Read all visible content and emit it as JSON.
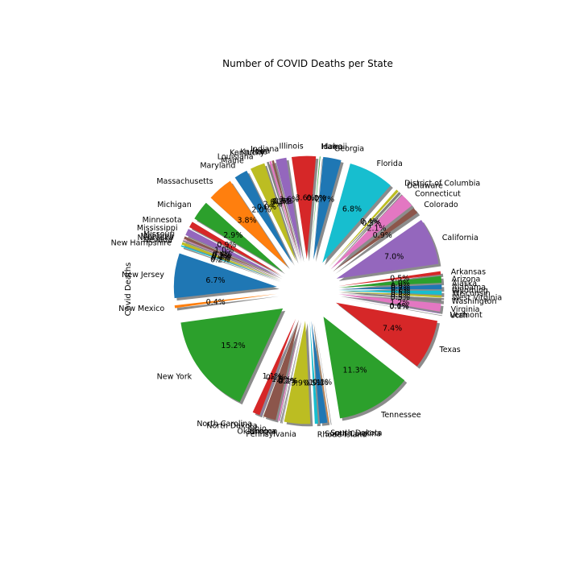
{
  "chart_data": {
    "type": "pie",
    "title": "Number of COVID Deaths per State",
    "ylabel": "Covid Deaths",
    "start_angle_deg": 0,
    "counterclock": true,
    "shadow": true,
    "explode": 0.3,
    "label_format": "percent, 1 decimal",
    "categories": [
      "Alabama",
      "Alaska",
      "Arizona",
      "Arkansas",
      "California",
      "Colorado",
      "Connecticut",
      "Delaware",
      "District of Columbia",
      "Florida",
      "Georgia",
      "Hawaii",
      "Idaho",
      "Illinois",
      "Indiana",
      "Iowa",
      "Kansas",
      "Kentucky",
      "Louisiana",
      "Maine",
      "Maryland",
      "Massachusetts",
      "Michigan",
      "Minnesota",
      "Mississippi",
      "Missouri",
      "Montana",
      "Nebraska",
      "Nevada",
      "New Hampshire",
      "New Jersey",
      "New Mexico",
      "New York",
      "North Carolina",
      "North Dakota",
      "Ohio",
      "Oklahoma",
      "Oregon",
      "Pennsylvania",
      "Rhode Island",
      "South Carolina",
      "South Dakota",
      "Tennessee",
      "Texas",
      "Utah",
      "Vermont",
      "Virginia",
      "Washington",
      "West Virginia",
      "Wisconsin",
      "Wyoming"
    ],
    "values": [
      0.7,
      0.0,
      1.0,
      0.5,
      7.0,
      0.9,
      2.1,
      0.3,
      0.4,
      6.8,
      2.7,
      0.0,
      0.1,
      3.6,
      1.6,
      0.3,
      0.3,
      0.3,
      2.2,
      0.0,
      2.0,
      3.8,
      2.9,
      0.9,
      1.0,
      0.4,
      0.1,
      0.2,
      0.4,
      0.2,
      6.7,
      0.4,
      15.2,
      1.1,
      0.1,
      1.9,
      0.2,
      0.1,
      3.9,
      0.5,
      1.1,
      0.1,
      11.3,
      7.4,
      0.1,
      0.0,
      1.2,
      0.5,
      0.3,
      0.6,
      0.0
    ],
    "percent_labels": [
      "0.7%",
      "0.0%",
      "1.0%",
      "0.5%",
      "7.0%",
      "0.9%",
      "2.1%",
      "0.3%",
      "0.4%",
      "6.8%",
      "2.7%",
      "0.0%",
      "0.1%",
      "3.6%",
      "1.6%",
      "0.3%",
      "0.3%",
      "0.3%",
      "2.2%",
      "0.0%",
      "2.0%",
      "3.8%",
      "2.9%",
      "0.9%",
      "1.0%",
      "0.4%",
      "0.1%",
      "0.2%",
      "0.4%",
      "0.2%",
      "6.7%",
      "0.4%",
      "15.2%",
      "1.1%",
      "0.1%",
      "1.9%",
      "0.2%",
      "0.1%",
      "3.9%",
      "0.5%",
      "1.1%",
      "0.1%",
      "11.3%",
      "7.4%",
      "0.1%",
      "0.0%",
      "1.2%",
      "0.5%",
      "0.3%",
      "0.6%",
      "0.0%"
    ],
    "colors": [
      "#1f77b4",
      "#ff7f0e",
      "#2ca02c",
      "#d62728",
      "#9467bd",
      "#8c564b",
      "#e377c2",
      "#7f7f7f",
      "#bcbd22",
      "#17becf"
    ]
  }
}
